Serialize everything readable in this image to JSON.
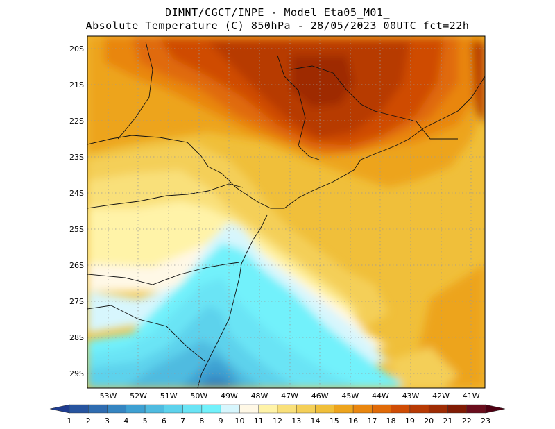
{
  "header": {
    "line1": "DIMNT/CGCT/INPE -  Model Eta05_M01_",
    "line2": "Absolute Temperature (C) 850hPa -  28/05/2023 00UTC fct=22h"
  },
  "map": {
    "lat_labels": [
      "20S",
      "21S",
      "22S",
      "23S",
      "24S",
      "25S",
      "26S",
      "27S",
      "28S",
      "29S"
    ],
    "lon_labels": [
      "53W",
      "52W",
      "51W",
      "50W",
      "49W",
      "48W",
      "47W",
      "46W",
      "45W",
      "44W",
      "43W",
      "42W",
      "41W"
    ],
    "grid": "dotted"
  },
  "colorbar": {
    "labels": [
      "1",
      "2",
      "3",
      "4",
      "5",
      "6",
      "7",
      "8",
      "9",
      "10",
      "11",
      "12",
      "13",
      "14",
      "15",
      "16",
      "17",
      "18",
      "19",
      "20",
      "21",
      "22",
      "23"
    ],
    "colors": [
      "#1f3c8f",
      "#27549f",
      "#2f6cb0",
      "#3585c1",
      "#3ea0d2",
      "#4fbbe0",
      "#5dd2ec",
      "#6ae4f5",
      "#72f1fb",
      "#d7f6fd",
      "#fff8e6",
      "#fff3a8",
      "#f9e07a",
      "#f4cf58",
      "#f0bf3a",
      "#eda41d",
      "#e9860f",
      "#e06a08",
      "#cf4c05",
      "#b73a04",
      "#9e2c04",
      "#801b04",
      "#6a0d1c",
      "#4e0012"
    ]
  }
}
